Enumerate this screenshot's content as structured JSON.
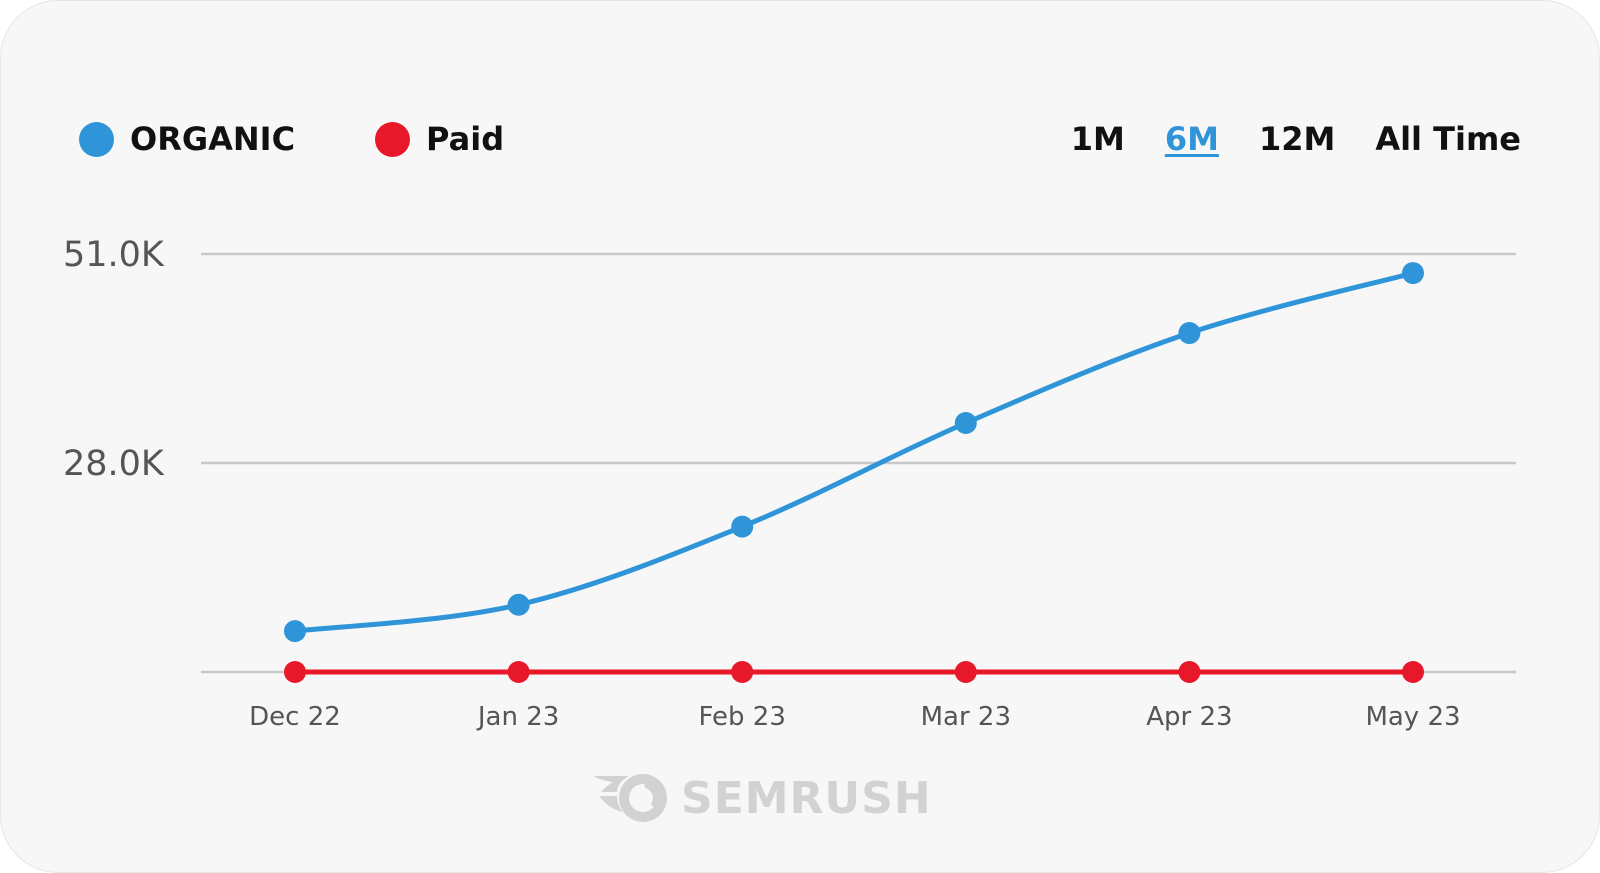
{
  "legend": {
    "items": [
      {
        "label": "ORGANIC",
        "color": "#2f95d8"
      },
      {
        "label": "Paid",
        "color": "#e8182b"
      }
    ]
  },
  "ranges": {
    "options": [
      "1M",
      "6M",
      "12M",
      "All Time"
    ],
    "selected": "6M"
  },
  "brand": {
    "name": "SEMRUSH",
    "icon": "semrush-fireball-logo"
  },
  "chart_data": {
    "type": "line",
    "categories": [
      "Dec 22",
      "Jan 23",
      "Feb 23",
      "Mar 23",
      "Apr 23",
      "May 23"
    ],
    "y_ticks": [
      "51.0K",
      "28.0K"
    ],
    "y_tick_values": [
      51000,
      28000
    ],
    "ylim": [
      5000,
      51000
    ],
    "grid": true,
    "legend_position": "top-left",
    "series": [
      {
        "name": "ORGANIC",
        "color": "#2f95d8",
        "values": [
          9500,
          12400,
          21000,
          32400,
          42300,
          48900
        ]
      },
      {
        "name": "Paid",
        "color": "#e8182b",
        "values": [
          5000,
          5000,
          5000,
          5000,
          5000,
          5000
        ]
      }
    ]
  }
}
